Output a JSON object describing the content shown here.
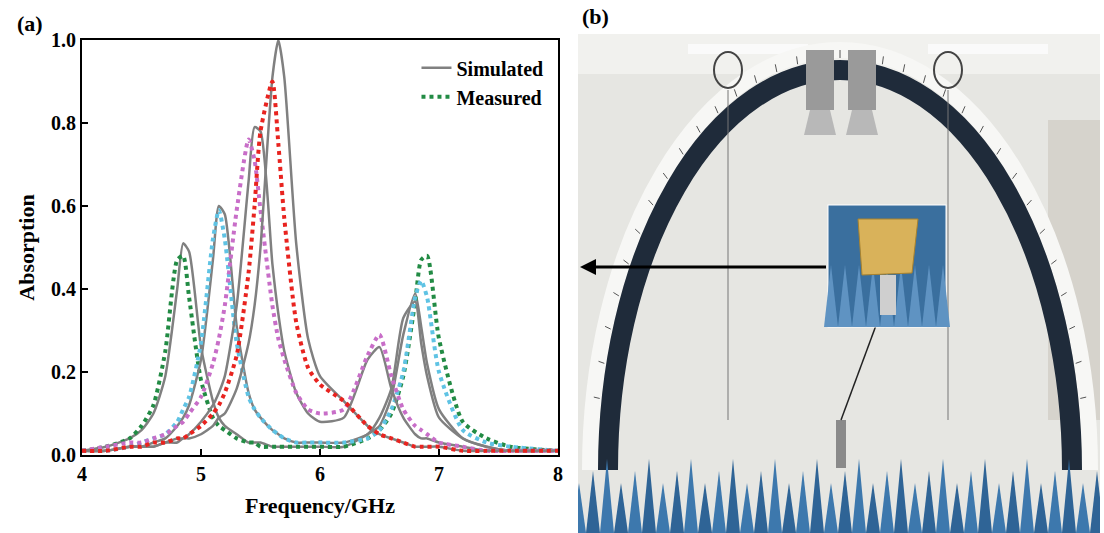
{
  "chart_data": {
    "type": "line",
    "xlabel": "Frequency/GHz",
    "ylabel": "Absorption",
    "annotations": [
      "(a)",
      "(b)"
    ],
    "xlim": [
      4,
      8
    ],
    "xticks": [
      4,
      5,
      6,
      7,
      8
    ],
    "ylim": [
      0,
      1
    ],
    "yticks": [
      {
        "value": 0,
        "label": "0.0"
      },
      {
        "value": 0.2,
        "label": "0.2"
      },
      {
        "value": 0.4,
        "label": "0.4"
      },
      {
        "value": 0.6,
        "label": "0.6"
      },
      {
        "value": 0.8,
        "label": "0.8"
      },
      {
        "value": 1,
        "label": "1.0"
      }
    ],
    "legend": "upper right",
    "x": [
      4.0,
      4.2,
      4.4,
      4.5,
      4.6,
      4.7,
      4.8,
      4.85,
      4.9,
      5.0,
      5.1,
      5.15,
      5.2,
      5.3,
      5.4,
      5.45,
      5.5,
      5.6,
      5.65,
      5.7,
      5.8,
      5.9,
      6.0,
      6.2,
      6.4,
      6.5,
      6.6,
      6.7,
      6.8,
      6.85,
      6.9,
      7.0,
      7.2,
      7.4,
      7.6,
      8.0
    ],
    "series": [
      {
        "name": "Simulated",
        "color": "#808080",
        "line_style": "solid",
        "values": [
          0.01,
          0.02,
          0.04,
          0.06,
          0.1,
          0.19,
          0.4,
          0.51,
          0.49,
          0.26,
          0.13,
          0.09,
          0.07,
          0.05,
          0.03,
          0.03,
          0.03,
          0.02,
          0.02,
          0.02,
          0.02,
          0.02,
          0.02,
          0.02,
          0.05,
          0.07,
          0.14,
          0.29,
          0.39,
          0.31,
          0.22,
          0.11,
          0.04,
          0.02,
          0.01,
          0.01
        ]
      },
      {
        "name": "Measured",
        "color": "#228b44",
        "line_style": "dotted",
        "values": [
          0.01,
          0.02,
          0.04,
          0.07,
          0.12,
          0.25,
          0.47,
          0.48,
          0.38,
          0.18,
          0.09,
          0.07,
          0.06,
          0.04,
          0.03,
          0.03,
          0.02,
          0.02,
          0.02,
          0.02,
          0.02,
          0.02,
          0.02,
          0.02,
          0.04,
          0.06,
          0.1,
          0.19,
          0.37,
          0.47,
          0.48,
          0.28,
          0.08,
          0.04,
          0.02,
          0.01
        ]
      },
      {
        "name": "Simulated",
        "color": "#808080",
        "line_style": "solid",
        "values": [
          0.01,
          0.01,
          0.02,
          0.02,
          0.03,
          0.04,
          0.07,
          0.09,
          0.12,
          0.23,
          0.47,
          0.6,
          0.58,
          0.31,
          0.15,
          0.11,
          0.09,
          0.06,
          0.05,
          0.04,
          0.03,
          0.03,
          0.03,
          0.03,
          0.05,
          0.09,
          0.16,
          0.33,
          0.37,
          0.27,
          0.19,
          0.09,
          0.04,
          0.02,
          0.01,
          0.01
        ]
      },
      {
        "name": "Measured",
        "color": "#5fc3e4",
        "line_style": "dotted",
        "values": [
          0.01,
          0.01,
          0.02,
          0.03,
          0.04,
          0.05,
          0.08,
          0.11,
          0.14,
          0.27,
          0.52,
          0.59,
          0.52,
          0.27,
          0.14,
          0.11,
          0.09,
          0.06,
          0.05,
          0.04,
          0.03,
          0.03,
          0.03,
          0.03,
          0.04,
          0.06,
          0.11,
          0.2,
          0.38,
          0.42,
          0.38,
          0.2,
          0.06,
          0.03,
          0.02,
          0.01
        ]
      },
      {
        "name": "Simulated",
        "color": "#808080",
        "line_style": "solid",
        "values": [
          0.01,
          0.01,
          0.02,
          0.02,
          0.02,
          0.03,
          0.04,
          0.04,
          0.05,
          0.08,
          0.12,
          0.15,
          0.19,
          0.36,
          0.66,
          0.79,
          0.78,
          0.46,
          0.34,
          0.25,
          0.15,
          0.1,
          0.08,
          0.09,
          0.23,
          0.26,
          0.16,
          0.09,
          0.05,
          0.04,
          0.04,
          0.03,
          0.02,
          0.01,
          0.01,
          0.01
        ]
      },
      {
        "name": "Measured",
        "color": "#c86ec8",
        "line_style": "dotted",
        "values": [
          0.01,
          0.02,
          0.03,
          0.03,
          0.04,
          0.05,
          0.07,
          0.08,
          0.1,
          0.14,
          0.22,
          0.28,
          0.36,
          0.59,
          0.76,
          0.71,
          0.59,
          0.36,
          0.28,
          0.23,
          0.15,
          0.11,
          0.1,
          0.11,
          0.24,
          0.29,
          0.19,
          0.11,
          0.07,
          0.06,
          0.05,
          0.03,
          0.02,
          0.01,
          0.01,
          0.01
        ]
      },
      {
        "name": "Simulated",
        "color": "#808080",
        "line_style": "solid",
        "values": [
          0.01,
          0.01,
          0.02,
          0.02,
          0.02,
          0.03,
          0.03,
          0.04,
          0.04,
          0.05,
          0.07,
          0.09,
          0.1,
          0.16,
          0.27,
          0.36,
          0.5,
          0.91,
          1.0,
          0.91,
          0.51,
          0.28,
          0.19,
          0.13,
          0.07,
          0.05,
          0.04,
          0.03,
          0.02,
          0.02,
          0.02,
          0.02,
          0.01,
          0.01,
          0.01,
          0.01
        ]
      },
      {
        "name": "Measured",
        "color": "#e8231f",
        "line_style": "dotted",
        "values": [
          0.01,
          0.01,
          0.02,
          0.02,
          0.03,
          0.03,
          0.04,
          0.04,
          0.05,
          0.07,
          0.1,
          0.12,
          0.15,
          0.24,
          0.44,
          0.6,
          0.78,
          0.9,
          0.75,
          0.57,
          0.32,
          0.21,
          0.17,
          0.13,
          0.07,
          0.05,
          0.04,
          0.03,
          0.02,
          0.02,
          0.02,
          0.02,
          0.01,
          0.01,
          0.01,
          0.01
        ]
      }
    ]
  }
}
